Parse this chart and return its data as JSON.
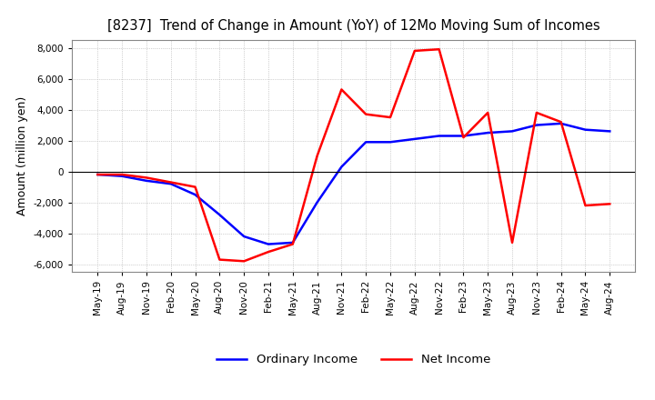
{
  "title": "[8237]  Trend of Change in Amount (YoY) of 12Mo Moving Sum of Incomes",
  "ylabel": "Amount (million yen)",
  "ylim": [
    -6500,
    8500
  ],
  "yticks": [
    -6000,
    -4000,
    -2000,
    0,
    2000,
    4000,
    6000,
    8000
  ],
  "x_labels": [
    "May-19",
    "Aug-19",
    "Nov-19",
    "Feb-20",
    "May-20",
    "Aug-20",
    "Nov-20",
    "Feb-21",
    "May-21",
    "Aug-21",
    "Nov-21",
    "Feb-22",
    "May-22",
    "Aug-22",
    "Nov-22",
    "Feb-23",
    "May-23",
    "Aug-23",
    "Nov-23",
    "Feb-24",
    "May-24",
    "Aug-24"
  ],
  "ordinary_income": [
    -200,
    -300,
    -600,
    -800,
    -1500,
    -2800,
    -4200,
    -4700,
    -4600,
    -2000,
    300,
    1900,
    1900,
    2100,
    2300,
    2300,
    2500,
    2600,
    3000,
    3100,
    2700,
    2600
  ],
  "net_income": [
    -200,
    -200,
    -400,
    -700,
    -1000,
    -5700,
    -5800,
    -5200,
    -4700,
    1000,
    5300,
    3700,
    3500,
    7800,
    7900,
    2200,
    3800,
    -4600,
    3800,
    3200,
    -2200,
    -2100
  ],
  "ordinary_color": "#0000ff",
  "net_color": "#ff0000",
  "legend_labels": [
    "Ordinary Income",
    "Net Income"
  ],
  "background_color": "#ffffff",
  "grid_color": "#aaaaaa"
}
